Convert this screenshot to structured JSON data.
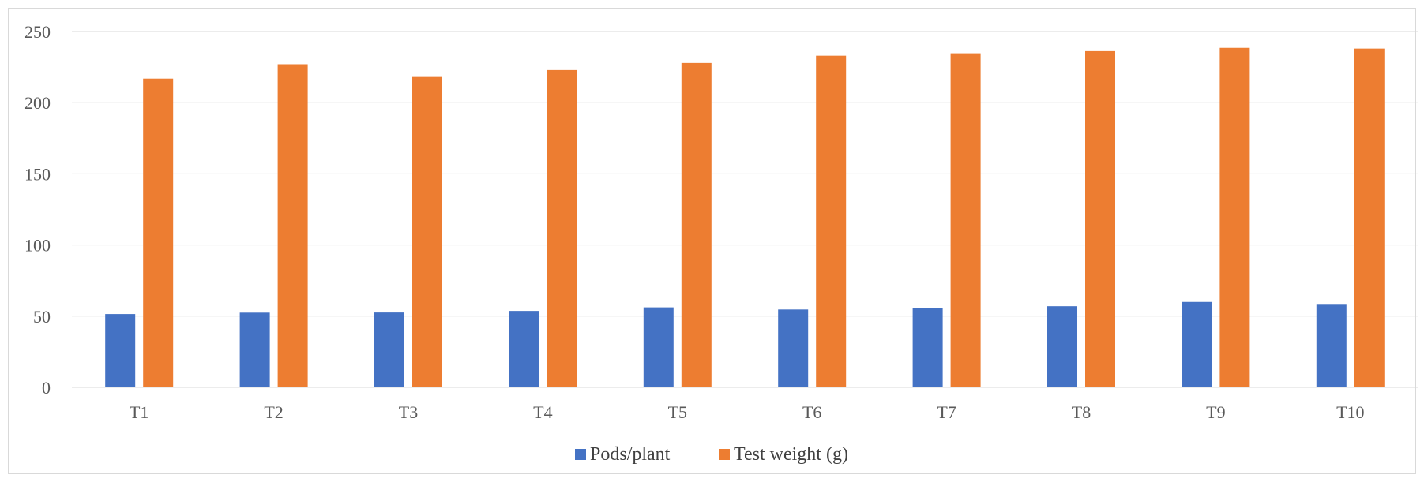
{
  "chart_data": {
    "type": "bar",
    "categories": [
      "T1",
      "T2",
      "T3",
      "T4",
      "T5",
      "T6",
      "T7",
      "T8",
      "T9",
      "T10"
    ],
    "series": [
      {
        "name": "Pods/plant",
        "color": "#4472C4",
        "values": [
          51.5,
          52.5,
          52.6,
          53.7,
          56.2,
          54.7,
          55.6,
          57.0,
          60.0,
          58.6
        ]
      },
      {
        "name": "Test weight (g)",
        "color": "#ED7D31",
        "values": [
          216.9,
          227.0,
          218.6,
          222.9,
          227.9,
          233.0,
          234.7,
          236.2,
          238.5,
          238.0
        ]
      }
    ],
    "title": "",
    "xlabel": "",
    "ylabel": "",
    "ylim": [
      0,
      250
    ],
    "yticks": [
      0,
      50,
      100,
      150,
      200,
      250
    ],
    "grid": true,
    "legend_position": "bottom"
  }
}
